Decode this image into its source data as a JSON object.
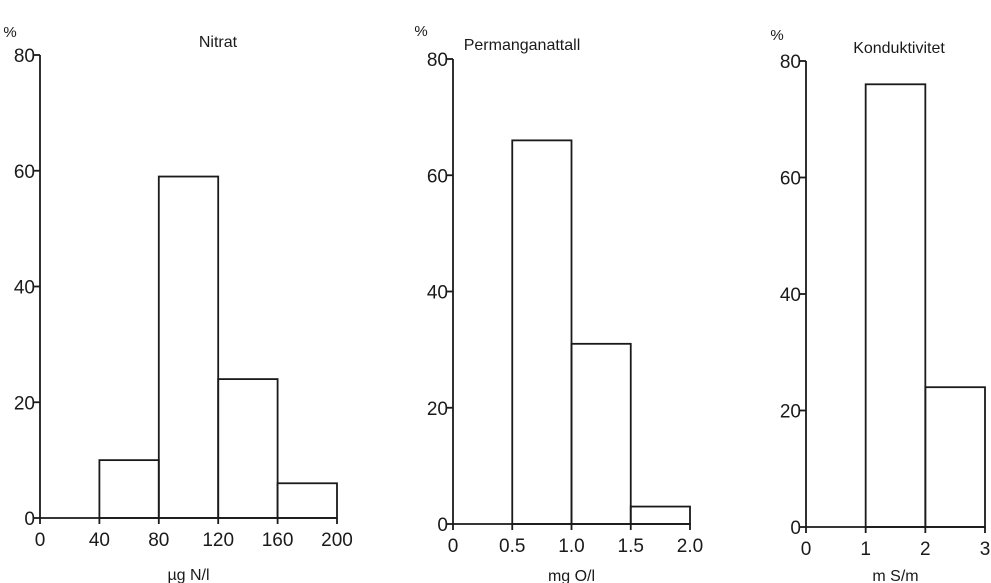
{
  "chart_data": [
    {
      "type": "bar",
      "title": "Nitrat",
      "y_unit": "%",
      "xlabel": "µg N/l",
      "xlim": [
        0,
        200
      ],
      "ylim": [
        0,
        80
      ],
      "x_ticks": [
        0,
        40,
        80,
        120,
        160,
        200
      ],
      "x_tick_labels": [
        "0",
        "40",
        "80",
        "120",
        "160",
        "200"
      ],
      "y_ticks": [
        0,
        20,
        40,
        60,
        80
      ],
      "y_tick_labels": [
        "0",
        "20",
        "40",
        "60",
        "80"
      ],
      "bins": [
        {
          "from": 40,
          "to": 80,
          "value": 10
        },
        {
          "from": 80,
          "to": 120,
          "value": 59
        },
        {
          "from": 120,
          "to": 160,
          "value": 24
        },
        {
          "from": 160,
          "to": 200,
          "value": 6
        }
      ]
    },
    {
      "type": "bar",
      "title": "Permanganattall",
      "y_unit": "%",
      "xlabel": "mg O/l",
      "xlim": [
        0,
        2
      ],
      "ylim": [
        0,
        80
      ],
      "x_ticks": [
        0,
        0.5,
        1,
        1.5,
        2
      ],
      "x_tick_labels": [
        "0",
        "0.5",
        "1.0",
        "1.5",
        "2.0"
      ],
      "y_ticks": [
        0,
        20,
        40,
        60,
        80
      ],
      "y_tick_labels": [
        "0",
        "20",
        "40",
        "60",
        "80"
      ],
      "bins": [
        {
          "from": 0.5,
          "to": 1.0,
          "value": 66
        },
        {
          "from": 1.0,
          "to": 1.5,
          "value": 31
        },
        {
          "from": 1.5,
          "to": 2.0,
          "value": 3
        }
      ]
    },
    {
      "type": "bar",
      "title": "Konduktivitet",
      "y_unit": "%",
      "xlabel": "m S/m",
      "xlim": [
        0,
        3
      ],
      "ylim": [
        0,
        80
      ],
      "x_ticks": [
        0,
        1,
        2,
        3
      ],
      "x_tick_labels": [
        "0",
        "1",
        "2",
        "3"
      ],
      "y_ticks": [
        0,
        20,
        40,
        60,
        80
      ],
      "y_tick_labels": [
        "0",
        "20",
        "40",
        "60",
        "80"
      ],
      "bins": [
        {
          "from": 1,
          "to": 2,
          "value": 76
        },
        {
          "from": 2,
          "to": 3,
          "value": 24
        }
      ]
    }
  ]
}
